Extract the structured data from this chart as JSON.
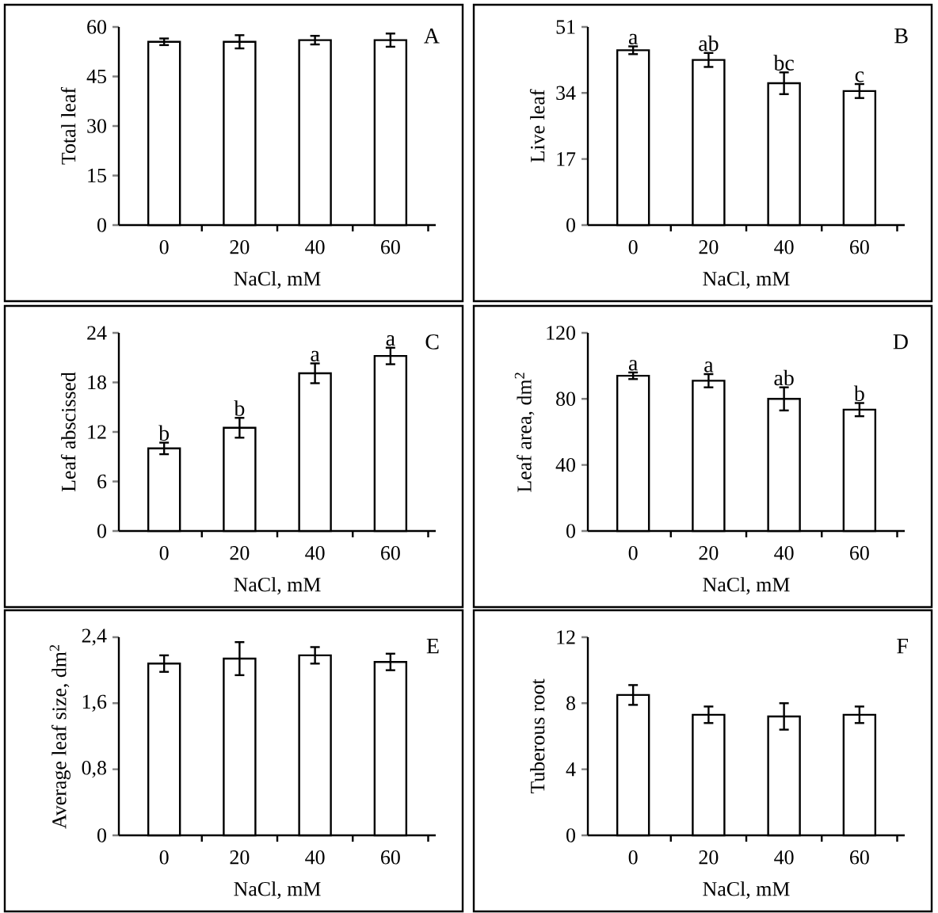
{
  "chart_data": [
    {
      "type": "bar",
      "title": "A",
      "xlabel": "NaCl, mM",
      "ylabel": "Total leaf",
      "categories": [
        "0",
        "20",
        "40",
        "60"
      ],
      "values": [
        55.5,
        55.5,
        56,
        56
      ],
      "errors": [
        1,
        2,
        1.3,
        2
      ],
      "color": "#ffffff",
      "ylim": [
        0,
        60
      ],
      "yticks": [
        0,
        15,
        30,
        45,
        60
      ]
    },
    {
      "type": "bar",
      "title": "B",
      "xlabel": "NaCl, mM",
      "ylabel": "Live leaf",
      "categories": [
        "0",
        "20",
        "40",
        "60"
      ],
      "values": [
        45,
        42.5,
        36.5,
        34.5
      ],
      "errors": [
        1,
        1.8,
        2.8,
        1.8
      ],
      "color": "#ffffff",
      "ylim": [
        0,
        51
      ],
      "yticks": [
        0,
        17,
        34,
        51
      ],
      "annotations": [
        {
          "text": "a",
          "x": "0",
          "y": 46
        },
        {
          "text": "ab",
          "x": "20",
          "y": 44.3
        },
        {
          "text": "bc",
          "x": "40",
          "y": 39.3
        },
        {
          "text": "c",
          "x": "60",
          "y": 36.3
        }
      ]
    },
    {
      "type": "bar",
      "title": "C",
      "xlabel": "NaCl, mM",
      "ylabel": "Leaf abscissed",
      "categories": [
        "0",
        "20",
        "40",
        "60"
      ],
      "values": [
        10,
        12.5,
        19.1,
        21.2
      ],
      "errors": [
        0.7,
        1.2,
        1.2,
        1
      ],
      "color": "#ffffff",
      "ylim": [
        0,
        24
      ],
      "yticks": [
        0,
        6,
        12,
        18,
        24
      ],
      "annotations": [
        {
          "text": "b",
          "x": "0",
          "y": 10.7
        },
        {
          "text": "b",
          "x": "20",
          "y": 13.7
        },
        {
          "text": "a",
          "x": "40",
          "y": 20.3
        },
        {
          "text": "a",
          "x": "60",
          "y": 22.2
        }
      ]
    },
    {
      "type": "bar",
      "title": "D",
      "xlabel": "NaCl, mM",
      "ylabel": "Leaf area, dm$^{2}$",
      "categories": [
        "0",
        "20",
        "40",
        "60"
      ],
      "values": [
        94,
        91,
        80,
        73.5
      ],
      "errors": [
        2,
        4,
        7,
        4
      ],
      "color": "#ffffff",
      "ylim": [
        0,
        120
      ],
      "yticks": [
        0,
        40,
        80,
        120
      ],
      "annotations": [
        {
          "text": "a",
          "x": "0",
          "y": 96
        },
        {
          "text": "a",
          "x": "20",
          "y": 95
        },
        {
          "text": "ab",
          "x": "40",
          "y": 87
        },
        {
          "text": "b",
          "x": "60",
          "y": 77.5
        }
      ]
    },
    {
      "type": "bar",
      "title": "E",
      "xlabel": "NaCl, mM",
      "ylabel": "Average leaf size, dm$^{2}$",
      "categories": [
        "0",
        "20",
        "40",
        "60"
      ],
      "values": [
        2.08,
        2.14,
        2.18,
        2.1
      ],
      "errors": [
        0.1,
        0.2,
        0.1,
        0.1
      ],
      "color": "#ffffff",
      "ylim": [
        0,
        2.4
      ],
      "yticks": [
        0,
        {
          "value": 0.8,
          "label": "0,8"
        },
        {
          "value": 1.6,
          "label": "1,6"
        },
        {
          "value": 2.4,
          "label": "2,4"
        }
      ]
    },
    {
      "type": "bar",
      "title": "F",
      "xlabel": "NaCl, mM",
      "ylabel": "Tuberous root",
      "categories": [
        "0",
        "20",
        "40",
        "60"
      ],
      "values": [
        8.5,
        7.3,
        7.2,
        7.3
      ],
      "errors": [
        0.6,
        0.5,
        0.8,
        0.5
      ],
      "color": "#ffffff",
      "ylim": [
        0,
        12
      ],
      "yticks": [
        0,
        4,
        8,
        12
      ]
    }
  ]
}
